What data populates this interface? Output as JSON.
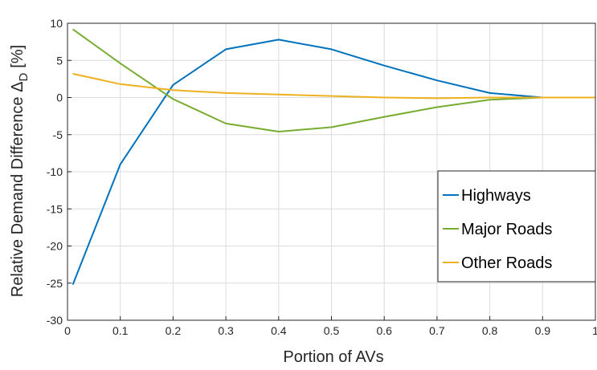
{
  "chart_data": {
    "type": "line",
    "title": "",
    "xlabel": "Portion of AVs",
    "ylabel_main": "Relative Demand Difference Δ",
    "ylabel_sub": "D",
    "ylabel_unit": "[%]",
    "xlim": [
      0,
      1
    ],
    "ylim": [
      -30,
      10
    ],
    "xticks": [
      0,
      0.1,
      0.2,
      0.3,
      0.4,
      0.5,
      0.6,
      0.7,
      0.8,
      0.9,
      1
    ],
    "xtick_labels": [
      "0",
      "0.1",
      "0.2",
      "0.3",
      "0.4",
      "0.5",
      "0.6",
      "0.7",
      "0.8",
      "0.9",
      "1"
    ],
    "yticks": [
      -30,
      -25,
      -20,
      -15,
      -10,
      -5,
      0,
      5,
      10
    ],
    "ytick_labels": [
      "-30",
      "-25",
      "-20",
      "-15",
      "-10",
      "-5",
      "0",
      "5",
      "10"
    ],
    "grid": true,
    "legend_position": "bottom-right",
    "x": [
      0.01,
      0.1,
      0.2,
      0.3,
      0.4,
      0.5,
      0.6,
      0.7,
      0.8,
      0.9,
      1
    ],
    "series": [
      {
        "name": "Highways",
        "color": "#0072BD",
        "values": [
          -25.2,
          -9.0,
          1.7,
          6.5,
          7.8,
          6.5,
          4.3,
          2.3,
          0.6,
          0.0,
          0.0
        ]
      },
      {
        "name": "Major Roads",
        "color": "#77AC30",
        "values": [
          9.2,
          4.6,
          -0.2,
          -3.5,
          -4.6,
          -4.0,
          -2.6,
          -1.3,
          -0.3,
          0.0,
          0.0
        ]
      },
      {
        "name": "Other Roads",
        "color": "#EDB120",
        "values": [
          3.2,
          1.8,
          1.0,
          0.6,
          0.4,
          0.2,
          0.0,
          -0.1,
          0.0,
          0.0,
          0.0
        ]
      }
    ]
  }
}
